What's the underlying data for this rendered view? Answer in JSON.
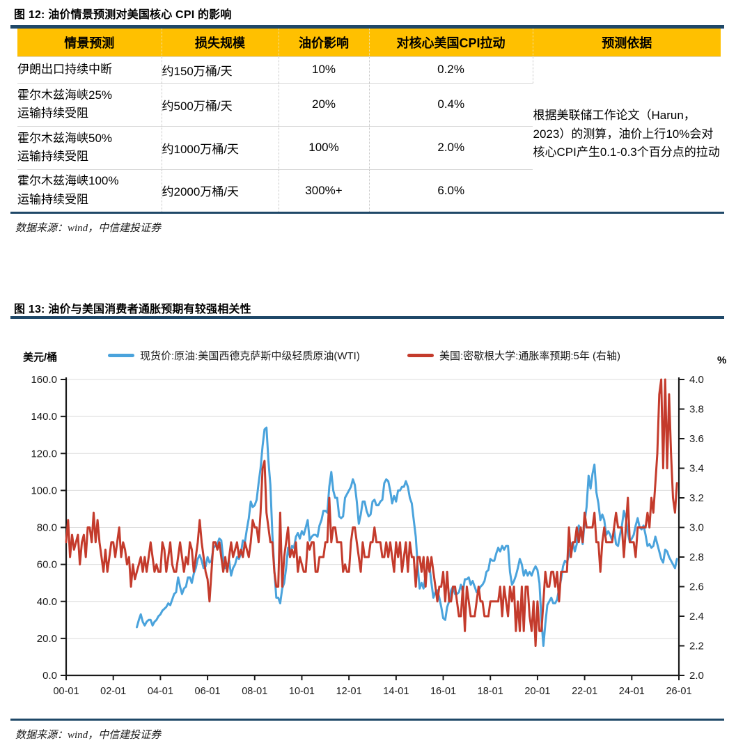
{
  "figure12": {
    "title": "图 12: 油价情景预测对美国核心 CPI 的影响",
    "source": "数据来源：wind，中信建投证券",
    "header_bg": "#FFC000",
    "table": {
      "headers": [
        "情景预测",
        "损失规模",
        "油价影响",
        "对核心美国CPI拉动",
        "预测依据"
      ],
      "rows": [
        {
          "scenario_lines": [
            "伊朗出口持续中断"
          ],
          "loss": "约150万桶/天",
          "oil_impact": "10%",
          "cpi_pull": "0.2%"
        },
        {
          "scenario_lines": [
            "霍尔木兹海峡25%",
            "运输持续受阻"
          ],
          "loss": "约500万桶/天",
          "oil_impact": "20%",
          "cpi_pull": "0.4%"
        },
        {
          "scenario_lines": [
            "霍尔木兹海峡50%",
            "运输持续受阻"
          ],
          "loss": "约1000万桶/天",
          "oil_impact": "100%",
          "cpi_pull": "2.0%"
        },
        {
          "scenario_lines": [
            "霍尔木兹海峡100%",
            "运输持续受阻"
          ],
          "loss": "约2000万桶/天",
          "oil_impact": "300%+",
          "cpi_pull": "6.0%"
        }
      ],
      "basis_note": "根据美联储工作论文（Harun，2023）的测算，油价上行10%会对核心CPI产生0.1-0.3个百分点的拉动"
    }
  },
  "figure13": {
    "title": "图 13: 油价与美国消费者通胀预期有较强相关性",
    "source": "数据来源：wind，中信建投证券"
  },
  "colors": {
    "navy_rule": "#1F4868",
    "table_header": "#FFC000",
    "wti_blue": "#4AA3DC",
    "inflation_red": "#C43B2C",
    "gridline": "#DCDCDC",
    "axis": "#1A1A1A"
  },
  "chart_data": {
    "type": "line",
    "title": "图 13: 油价与美国消费者通胀预期有较强相关性",
    "grid": "horizontal",
    "legend_position": "top",
    "x_range": [
      2000.0,
      2026.0
    ],
    "x_axis": {
      "tick_values": [
        2000,
        2002,
        2004,
        2006,
        2008,
        2010,
        2012,
        2014,
        2016,
        2018,
        2020,
        2022,
        2024,
        2026
      ],
      "tick_labels": [
        "00-01",
        "02-01",
        "04-01",
        "06-01",
        "08-01",
        "10-01",
        "12-01",
        "14-01",
        "16-01",
        "18-01",
        "20-01",
        "22-01",
        "24-01",
        "26-01"
      ]
    },
    "left_axis": {
      "label": "美元/桶",
      "min": 0,
      "max": 160,
      "ticks": [
        0,
        20,
        40,
        60,
        80,
        100,
        120,
        140,
        160
      ],
      "tick_labels": [
        "0.0",
        "20.0",
        "40.0",
        "60.0",
        "80.0",
        "100.0",
        "120.0",
        "140.0",
        "160.0"
      ]
    },
    "right_axis": {
      "label": "%",
      "min": 2.0,
      "max": 4.0,
      "ticks": [
        2.0,
        2.2,
        2.4,
        2.6,
        2.8,
        3.0,
        3.2,
        3.4,
        3.6,
        3.8,
        4.0
      ],
      "tick_labels": [
        "2.0",
        "2.2",
        "2.4",
        "2.6",
        "2.8",
        "3.0",
        "3.2",
        "3.4",
        "3.6",
        "3.8",
        "4.0"
      ]
    },
    "series": [
      {
        "name": "现货价:原油:美国西德克萨斯中级轻质原油(WTI)",
        "axis": "left",
        "color": "#4AA3DC",
        "start_x": 2003.0,
        "step_years": 0.0833333,
        "values": [
          26,
          30,
          33,
          29,
          27,
          29,
          30,
          30,
          27,
          29,
          30,
          32,
          33,
          35,
          36,
          37,
          39,
          38,
          41,
          44,
          45,
          53,
          48,
          44,
          47,
          48,
          53,
          53,
          50,
          55,
          58,
          63,
          65,
          62,
          58,
          59,
          64,
          61,
          62,
          69,
          70,
          71,
          74,
          73,
          63,
          58,
          59,
          62,
          54,
          58,
          60,
          64,
          63,
          66,
          73,
          72,
          79,
          85,
          94,
          91,
          92,
          95,
          104,
          112,
          124,
          133,
          134,
          116,
          103,
          76,
          57,
          42,
          42,
          39,
          47,
          50,
          58,
          69,
          64,
          70,
          69,
          75,
          77,
          74,
          78,
          76,
          80,
          84,
          73,
          75,
          76,
          76,
          75,
          81,
          84,
          89,
          89,
          88,
          102,
          110,
          100,
          96,
          96,
          86,
          85,
          86,
          96,
          98,
          100,
          102,
          106,
          103,
          94,
          82,
          87,
          94,
          94,
          89,
          86,
          87,
          94,
          95,
          92,
          92,
          94,
          95,
          104,
          106,
          105,
          100,
          93,
          97,
          94,
          100,
          100,
          102,
          102,
          105,
          102,
          96,
          93,
          84,
          75,
          59,
          47,
          50,
          47,
          54,
          59,
          59,
          50,
          42,
          45,
          46,
          42,
          37,
          31,
          30,
          37,
          40,
          46,
          48,
          44,
          44,
          45,
          49,
          45,
          52,
          52,
          53,
          49,
          51,
          48,
          45,
          46,
          48,
          49,
          51,
          56,
          57,
          63,
          62,
          62,
          66,
          69,
          67,
          70,
          68,
          70,
          70,
          56,
          49,
          51,
          54,
          58,
          63,
          60,
          54,
          57,
          54,
          56,
          54,
          57,
          59,
          57,
          50,
          30,
          16,
          28,
          38,
          40,
          42,
          39,
          39,
          41,
          47,
          52,
          59,
          62,
          61,
          65,
          71,
          72,
          67,
          71,
          81,
          79,
          71,
          83,
          91,
          108,
          101,
          109,
          114,
          99,
          93,
          84,
          87,
          84,
          76,
          78,
          76,
          73,
          79,
          71,
          70,
          76,
          81,
          89,
          85,
          77,
          72,
          74,
          76,
          81,
          85,
          80,
          79,
          81,
          76,
          70,
          71,
          69,
          70,
          75,
          71,
          67,
          63,
          61,
          68,
          67,
          64,
          62,
          60,
          58,
          63
        ]
      },
      {
        "name": "美国:密歇根大学:通胀率预期:5年 (右轴)",
        "axis": "right",
        "color": "#C43B2C",
        "start_x": 2000.0,
        "step_years": 0.0833333,
        "values": [
          2.9,
          3.05,
          2.8,
          2.95,
          2.85,
          2.9,
          2.95,
          2.75,
          2.9,
          2.95,
          2.8,
          3.0,
          3.0,
          2.9,
          3.1,
          2.9,
          3.05,
          2.9,
          2.8,
          2.7,
          2.85,
          2.7,
          2.8,
          2.9,
          2.9,
          2.8,
          2.9,
          3.0,
          2.8,
          2.9,
          2.85,
          2.75,
          2.8,
          2.6,
          2.75,
          2.65,
          2.7,
          2.75,
          2.8,
          2.7,
          2.8,
          2.7,
          2.8,
          2.9,
          2.8,
          2.7,
          2.75,
          2.7,
          2.7,
          2.9,
          2.85,
          2.7,
          2.8,
          2.9,
          2.75,
          2.7,
          2.7,
          2.8,
          2.9,
          2.8,
          2.7,
          2.8,
          2.75,
          2.9,
          2.85,
          2.7,
          2.8,
          2.9,
          3.05,
          2.9,
          2.8,
          2.7,
          2.65,
          2.5,
          2.7,
          2.9,
          2.9,
          2.85,
          2.9,
          2.8,
          2.7,
          2.8,
          2.7,
          2.8,
          2.9,
          2.8,
          2.85,
          2.9,
          2.8,
          2.85,
          2.8,
          2.9,
          2.85,
          2.8,
          2.9,
          3.05,
          3.0,
          3.0,
          2.9,
          3.1,
          3.4,
          3.45,
          3.1,
          3.0,
          2.9,
          2.9,
          2.7,
          2.6,
          2.6,
          3.1,
          2.6,
          2.8,
          2.9,
          3.0,
          2.8,
          2.85,
          2.8,
          2.9,
          2.7,
          2.8,
          2.75,
          2.7,
          2.7,
          2.9,
          2.85,
          2.9,
          2.9,
          2.7,
          2.7,
          2.8,
          2.8,
          2.8,
          2.9,
          2.9,
          3.2,
          2.9,
          3.0,
          3.0,
          2.9,
          2.9,
          2.9,
          2.7,
          2.75,
          2.7,
          2.7,
          2.9,
          3.0,
          3.0,
          2.9,
          2.8,
          2.7,
          2.9,
          2.8,
          2.8,
          2.8,
          2.9,
          2.9,
          3.0,
          2.9,
          2.9,
          2.9,
          2.8,
          2.8,
          2.9,
          2.8,
          2.9,
          2.8,
          2.7,
          2.9,
          2.8,
          2.9,
          2.7,
          2.8,
          2.9,
          2.7,
          2.9,
          2.8,
          2.8,
          2.6,
          2.8,
          2.8,
          2.7,
          2.8,
          2.6,
          2.8,
          2.7,
          2.8,
          2.7,
          2.6,
          2.5,
          2.6,
          2.6,
          2.7,
          2.5,
          2.7,
          2.5,
          2.5,
          2.6,
          2.6,
          2.5,
          2.4,
          2.4,
          2.6,
          2.3,
          2.6,
          2.5,
          2.4,
          2.4,
          2.4,
          2.5,
          2.6,
          2.5,
          2.5,
          2.4,
          2.4,
          2.4,
          2.5,
          2.5,
          2.5,
          2.5,
          2.5,
          2.6,
          2.4,
          2.6,
          2.5,
          2.4,
          2.6,
          2.5,
          2.6,
          2.3,
          2.5,
          2.3,
          2.6,
          2.3,
          2.6,
          2.6,
          2.4,
          2.3,
          2.5,
          2.2,
          2.5,
          2.3,
          2.3,
          2.5,
          2.7,
          2.6,
          2.6,
          2.7,
          2.7,
          2.6,
          2.7,
          2.5,
          2.7,
          2.7,
          2.7,
          2.7,
          3.0,
          2.8,
          2.9,
          2.9,
          3.0,
          2.9,
          3.0,
          2.9,
          3.1,
          3.0,
          3.0,
          3.0,
          3.0,
          3.1,
          2.9,
          2.9,
          2.7,
          2.9,
          3.0,
          2.9,
          2.9,
          2.9,
          2.9,
          3.0,
          3.1,
          3.0,
          3.0,
          3.0,
          2.8,
          3.0,
          3.2,
          2.9,
          2.9,
          2.9,
          2.8,
          3.0,
          3.0,
          3.0,
          3.0,
          3.0,
          3.1,
          3.0,
          3.2,
          3.1,
          3.3,
          3.5,
          3.9,
          4.4,
          3.4,
          4.2,
          3.4,
          3.9,
          3.5,
          3.2,
          3.1,
          3.3
        ]
      }
    ]
  }
}
